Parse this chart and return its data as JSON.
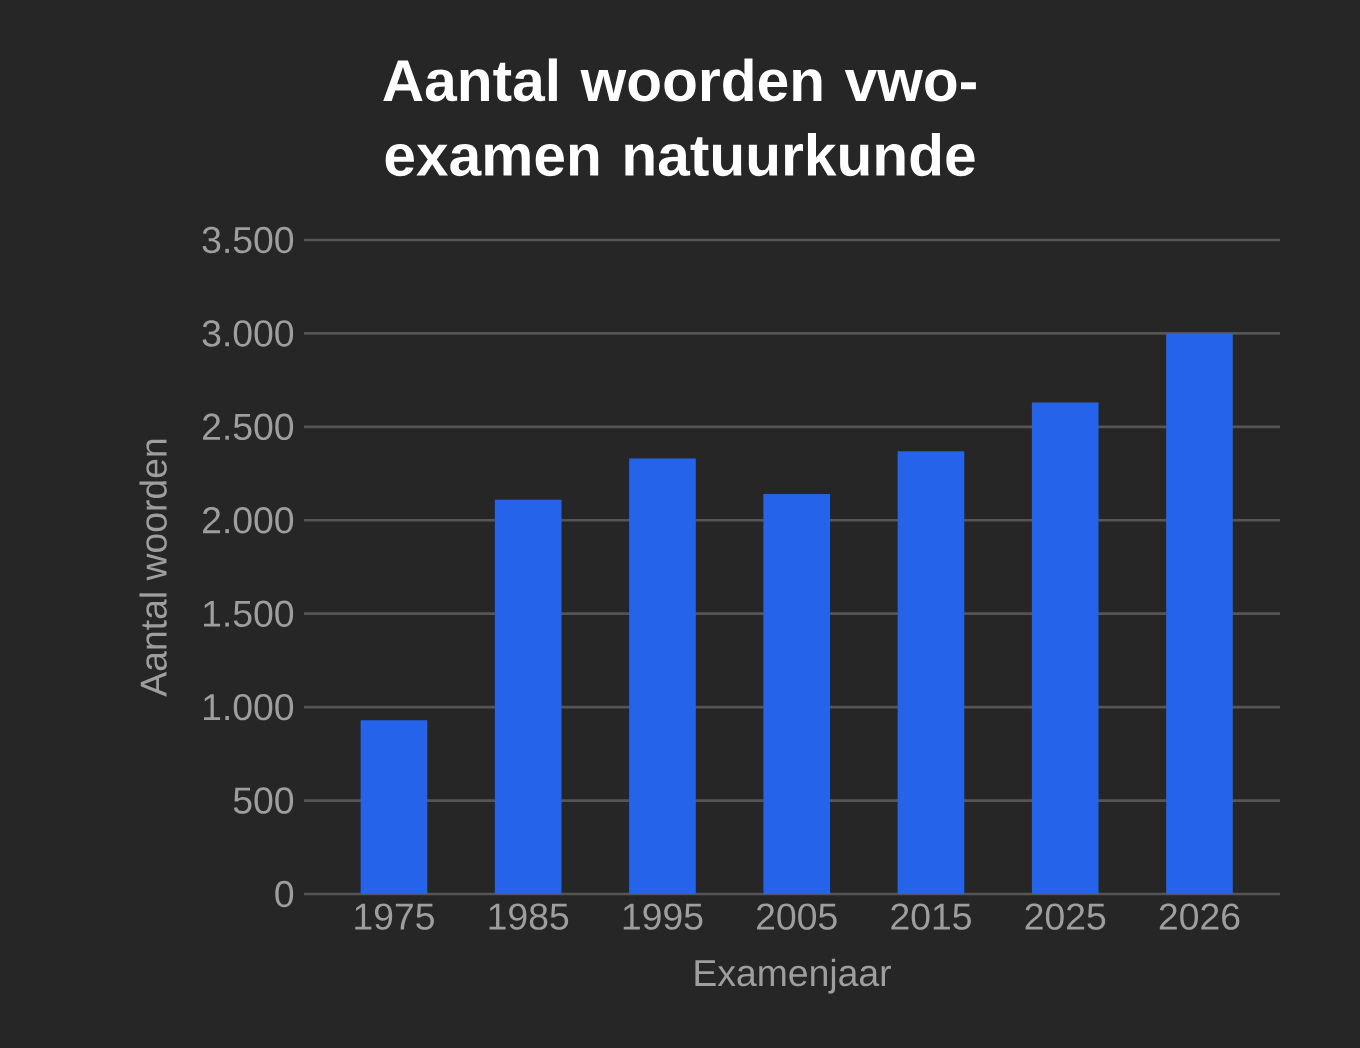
{
  "chart_data": {
    "type": "bar",
    "title": "Aantal woorden vwo-examen natuurkunde",
    "xlabel": "Examenjaar",
    "ylabel": "Aantal woorden",
    "categories": [
      "1975",
      "1985",
      "1995",
      "2005",
      "2015",
      "2025",
      "2026"
    ],
    "values": [
      930,
      2110,
      2330,
      2140,
      2370,
      2630,
      3000
    ],
    "color": "#2563eb",
    "ylim": [
      0,
      3500
    ],
    "yticks": [
      0,
      500,
      {
        "value": 1000,
        "label": "1.000"
      },
      {
        "value": 1500,
        "label": "1.500"
      },
      {
        "value": 2000,
        "label": "2.000"
      },
      {
        "value": 2500,
        "label": "2.500"
      },
      {
        "value": 3000,
        "label": "3.000"
      },
      {
        "value": 3500,
        "label": "3.500"
      }
    ],
    "grid": "y"
  }
}
